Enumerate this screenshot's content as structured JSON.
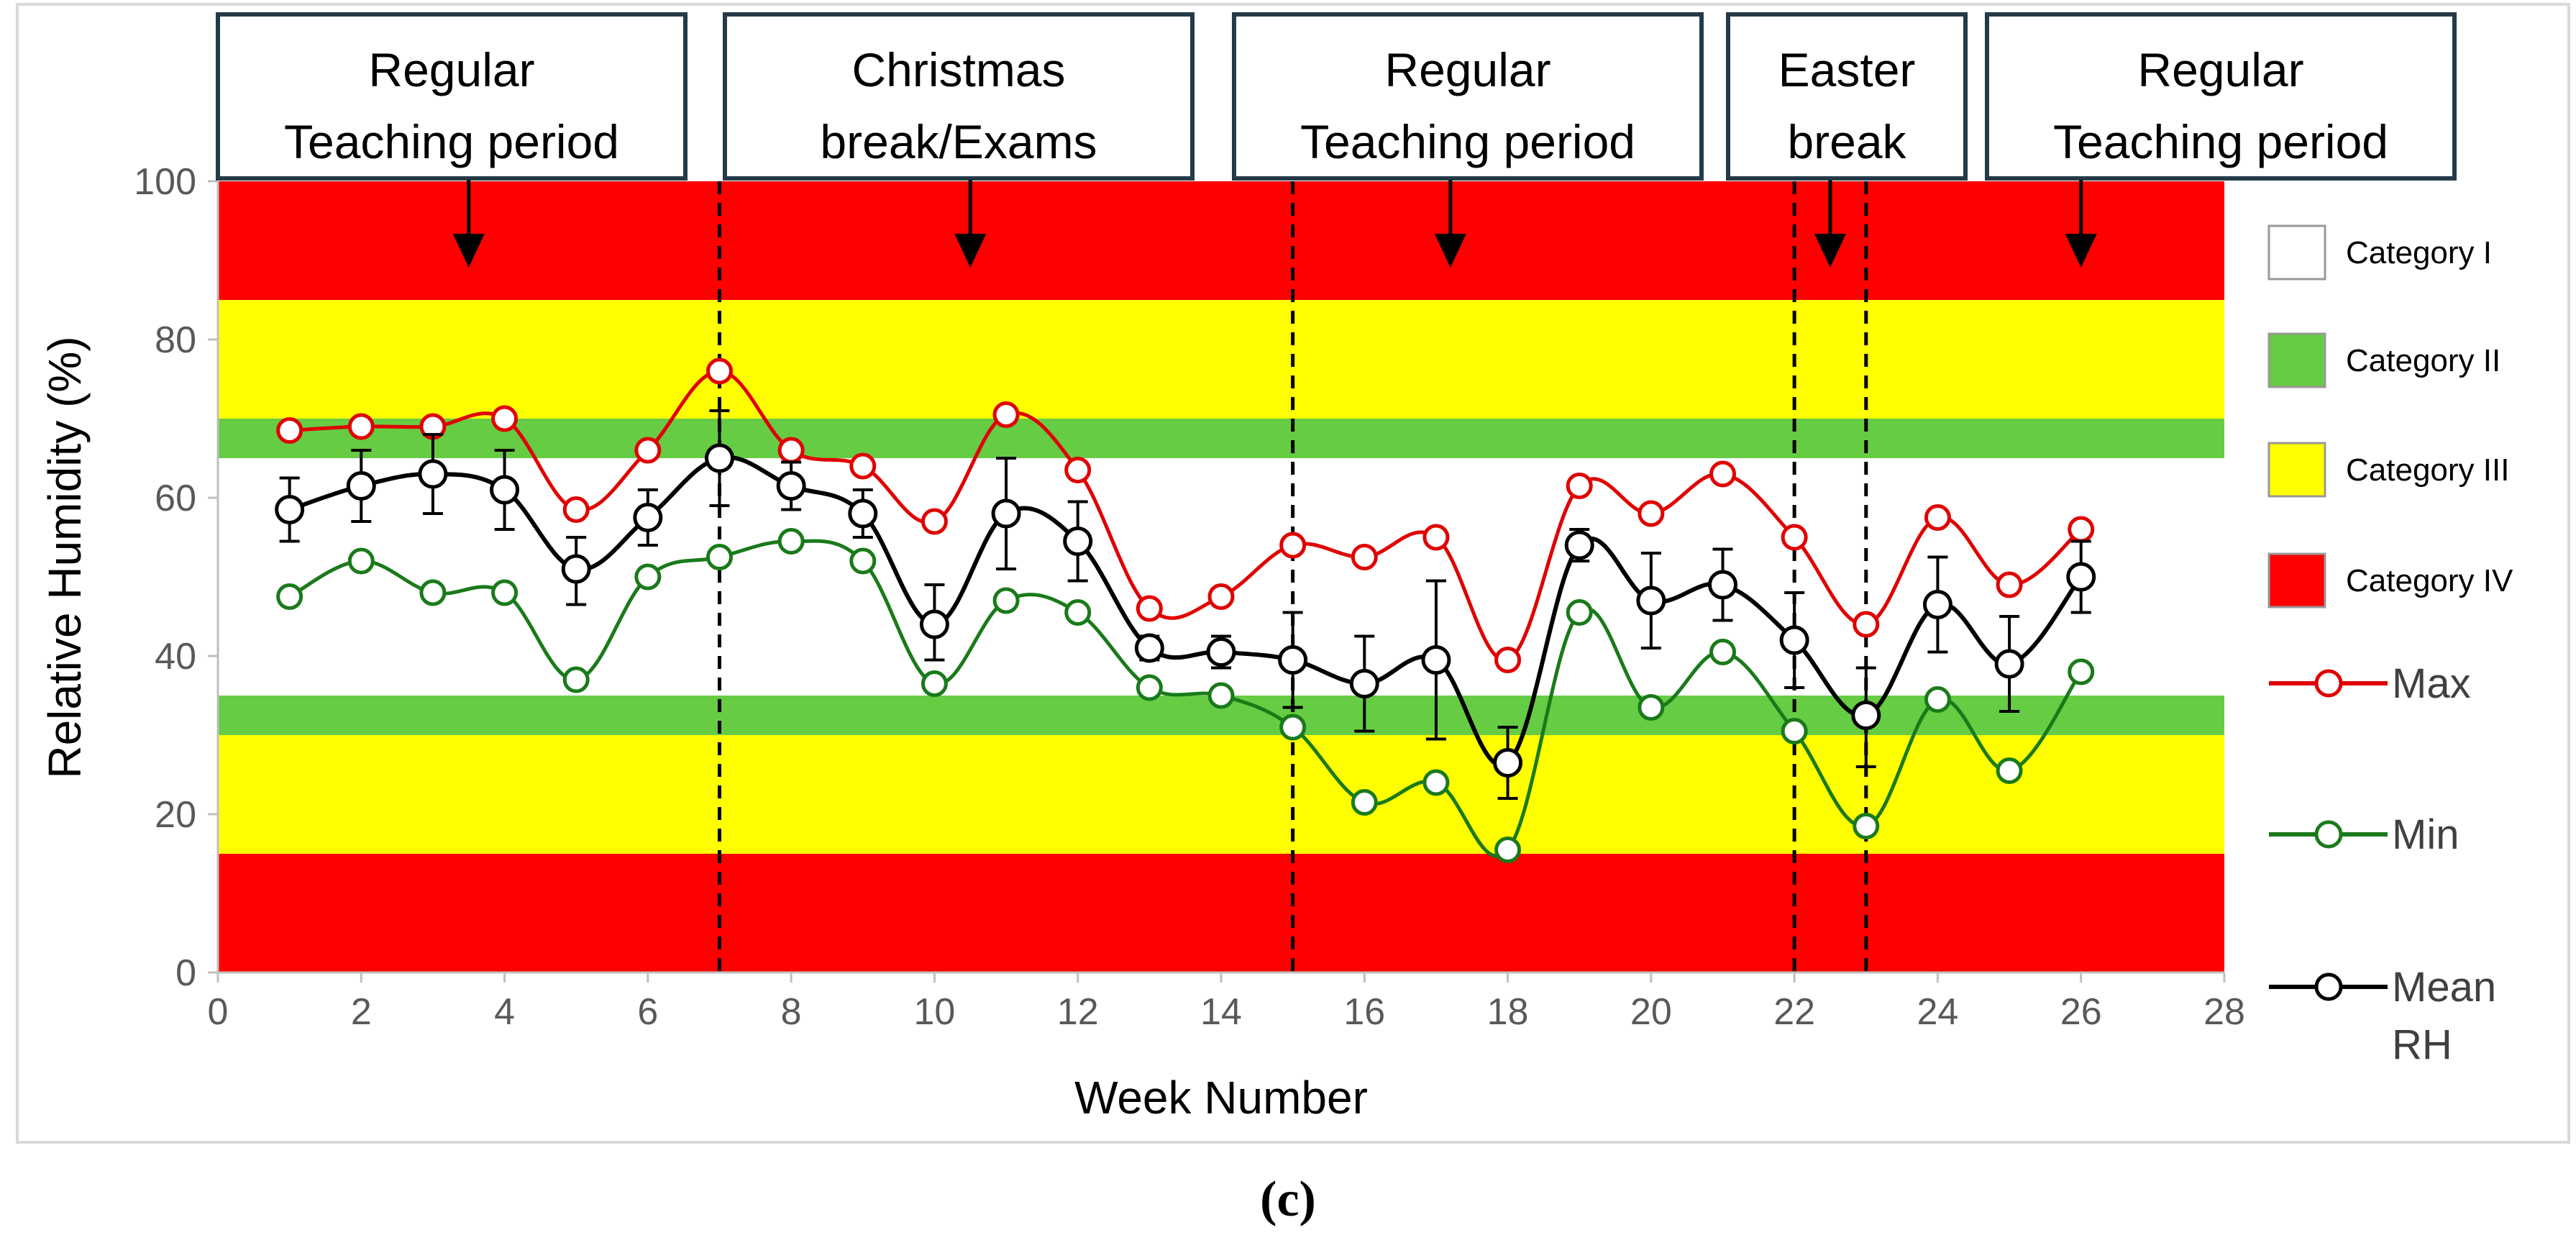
{
  "chart_data": {
    "type": "line",
    "xlabel": "Week Number",
    "ylabel": "Relative Humidity (%)",
    "xlim": [
      0,
      28
    ],
    "ylim": [
      0,
      100
    ],
    "xticks": [
      0,
      2,
      4,
      6,
      8,
      10,
      12,
      14,
      16,
      18,
      20,
      22,
      24,
      26,
      28
    ],
    "yticks": [
      0,
      20,
      40,
      60,
      80,
      100
    ],
    "x": [
      1,
      2,
      3,
      4,
      5,
      6,
      7,
      8,
      9,
      10,
      11,
      12,
      13,
      14,
      15,
      16,
      17,
      18,
      19,
      20,
      21,
      22,
      23,
      24,
      25,
      26
    ],
    "series": [
      {
        "name": "Max",
        "color": "#e00000",
        "values": [
          68.5,
          69,
          69,
          70,
          58.5,
          66,
          76,
          66,
          64,
          57,
          70.5,
          63.5,
          46,
          47.5,
          54,
          52.5,
          55,
          39.5,
          61.5,
          58,
          63,
          55,
          44,
          57.5,
          49,
          56
        ]
      },
      {
        "name": "Min",
        "color": "#1a7a1a",
        "values": [
          47.5,
          52,
          48,
          48,
          37,
          50,
          52.5,
          54.5,
          52,
          36.5,
          47,
          45.5,
          36,
          35,
          31,
          21.5,
          24,
          15.5,
          45.5,
          33.5,
          40.5,
          30.5,
          18.5,
          34.5,
          25.5,
          38
        ]
      },
      {
        "name": "Mean RH",
        "color": "#000000",
        "values": [
          58.5,
          61.5,
          63,
          61,
          51,
          57.5,
          65,
          61.5,
          58,
          44,
          58,
          54.5,
          41,
          40.5,
          39.5,
          36.5,
          39.5,
          26.5,
          54,
          47,
          49,
          42,
          32.5,
          46.5,
          39,
          50
        ],
        "err_high": [
          4,
          4.5,
          5,
          5,
          4,
          3.5,
          6,
          3,
          3,
          5,
          7,
          5,
          1.5,
          2,
          6,
          6,
          10,
          4.5,
          2,
          6,
          4.5,
          6,
          6,
          6,
          6,
          4.5
        ],
        "err_low": [
          4,
          4.5,
          5,
          5,
          4.5,
          3.5,
          6,
          3,
          3,
          4.5,
          7,
          5,
          1.5,
          2,
          6,
          6,
          10,
          4.5,
          2,
          6,
          4.5,
          6,
          6.5,
          6,
          6,
          4.5
        ]
      }
    ],
    "bands": [
      {
        "category": "Category IV",
        "from": 85,
        "to": 100,
        "color": "#ff0000"
      },
      {
        "category": "Category III",
        "from": 70,
        "to": 85,
        "color": "#ffff00"
      },
      {
        "category": "Category II",
        "from": 65,
        "to": 70,
        "color": "#66cc44"
      },
      {
        "category": "Category I",
        "from": 35,
        "to": 65,
        "color": "#ffffff"
      },
      {
        "category": "Category II",
        "from": 30,
        "to": 35,
        "color": "#66cc44"
      },
      {
        "category": "Category III",
        "from": 15,
        "to": 30,
        "color": "#ffff00"
      },
      {
        "category": "Category IV",
        "from": 0,
        "to": 15,
        "color": "#ff0000"
      }
    ],
    "vlines": [
      7,
      15,
      22,
      23
    ],
    "periods": [
      {
        "line1": "Regular",
        "line2": "Teaching period",
        "arrow_x": 3.5
      },
      {
        "line1": "Christmas",
        "line2": "break/Exams",
        "arrow_x": 10.5
      },
      {
        "line1": "Regular",
        "line2": "Teaching period",
        "arrow_x": 17.2
      },
      {
        "line1": "Easter",
        "line2": "break",
        "arrow_x": 22.5
      },
      {
        "line1": "Regular",
        "line2": "Teaching period",
        "arrow_x": 26
      }
    ],
    "legend_categories": [
      {
        "label": "Category I",
        "color": "#ffffff"
      },
      {
        "label": "Category II",
        "color": "#66cc44"
      },
      {
        "label": "Category III",
        "color": "#ffff00"
      },
      {
        "label": "Category IV",
        "color": "#ff0000"
      }
    ],
    "legend_series": [
      {
        "line1": "Max",
        "line2": "",
        "color": "#e00000"
      },
      {
        "line1": "Min",
        "line2": "",
        "color": "#1a7a1a"
      },
      {
        "line1": "Mean",
        "line2": "RH",
        "color": "#000000"
      }
    ],
    "caption": "(c)"
  }
}
